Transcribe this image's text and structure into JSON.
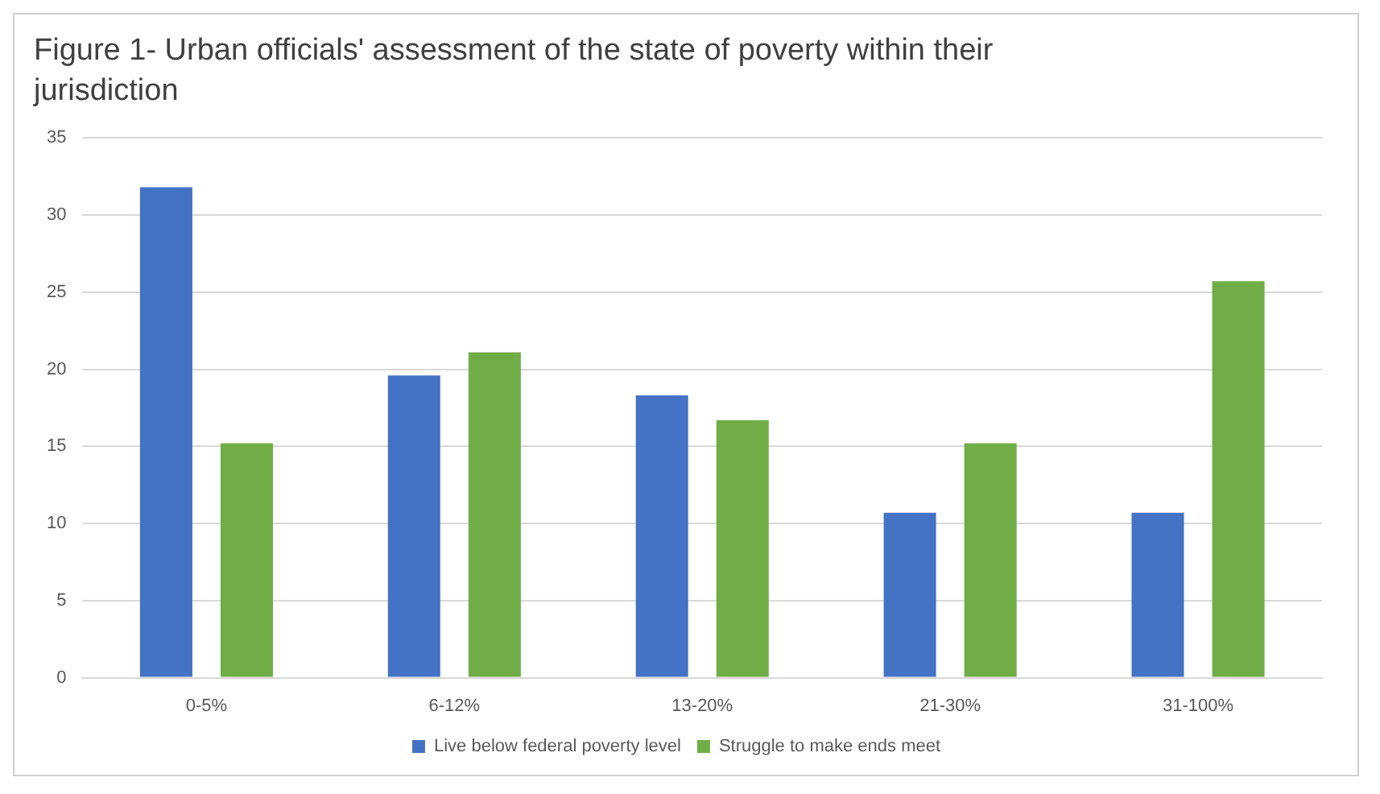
{
  "chart_data": {
    "type": "bar",
    "title": "Figure 1- Urban officials' assessment of  the state of poverty within their jurisdiction",
    "categories": [
      "0-5%",
      "6-12%",
      "13-20%",
      "21-30%",
      "31-100%"
    ],
    "series": [
      {
        "name": "Live below federal poverty level",
        "color": "#4472c4",
        "values": [
          31.8,
          19.6,
          18.3,
          10.7,
          10.7
        ]
      },
      {
        "name": "Struggle to make ends meet",
        "color": "#70ad47",
        "values": [
          15.2,
          21.1,
          16.7,
          15.2,
          25.7
        ]
      }
    ],
    "ylim": [
      0,
      35
    ],
    "yticks": [
      0,
      5,
      10,
      15,
      20,
      25,
      30,
      35
    ],
    "grid": "y",
    "legend": "bottom"
  }
}
